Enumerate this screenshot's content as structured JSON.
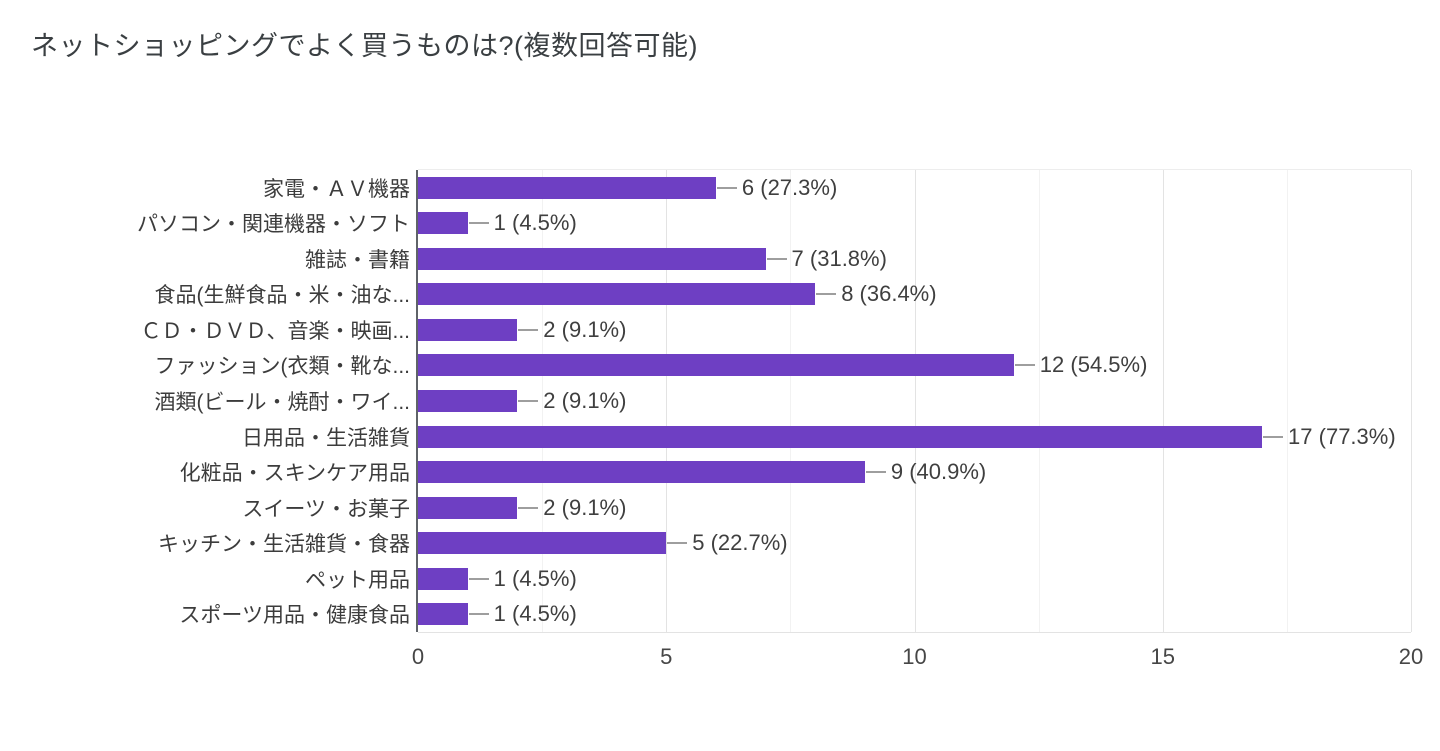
{
  "page": {
    "background": "#ffffff"
  },
  "chart_data": {
    "type": "bar",
    "orientation": "horizontal",
    "title": "ネットショッピングでよく買うものは?(複数回答可能)",
    "categories": [
      "家電・ＡＶ機器",
      "パソコン・関連機器・ソフト",
      "雑誌・書籍",
      "食品(生鮮食品・米・油な...",
      "ＣＤ・ＤＶＤ、音楽・映画...",
      "ファッション(衣類・靴な...",
      "酒類(ビール・焼酎・ワイ...",
      "日用品・生活雑貨",
      "化粧品・スキンケア用品",
      "スイーツ・お菓子",
      "キッチン・生活雑貨・食器",
      "ペット用品",
      "スポーツ用品・健康食品"
    ],
    "values": [
      6,
      1,
      7,
      8,
      2,
      12,
      2,
      17,
      9,
      2,
      5,
      1,
      1
    ],
    "value_labels": [
      "6 (27.3%)",
      "1 (4.5%)",
      "7 (31.8%)",
      "8 (36.4%)",
      "2 (9.1%)",
      "12 (54.5%)",
      "2 (9.1%)",
      "17 (77.3%)",
      "9 (40.9%)",
      "2 (9.1%)",
      "5 (22.7%)",
      "1 (4.5%)",
      "1 (4.5%)"
    ],
    "xlabel": "",
    "ylabel": "",
    "xlim": [
      0,
      20
    ],
    "x_ticks": [
      0,
      5,
      10,
      15,
      20
    ],
    "x_tick_labels": [
      "0",
      "5",
      "10",
      "15",
      "20"
    ],
    "grid": {
      "direction": "vertical",
      "major_every": 5,
      "minor_every": 2.5
    },
    "legend": "none",
    "colors": {
      "bar": "#6e3fc3",
      "axis_line": "#5f6368",
      "grid_major": "#e3e3e3",
      "grid_minor": "#f2f2f2",
      "plot_border": "#ededed",
      "connector": "#9e9e9e",
      "title_text": "#3a3f42",
      "category_text": "#3c3c3c",
      "value_text": "#3f3f3f",
      "tick_text": "#464646"
    }
  }
}
